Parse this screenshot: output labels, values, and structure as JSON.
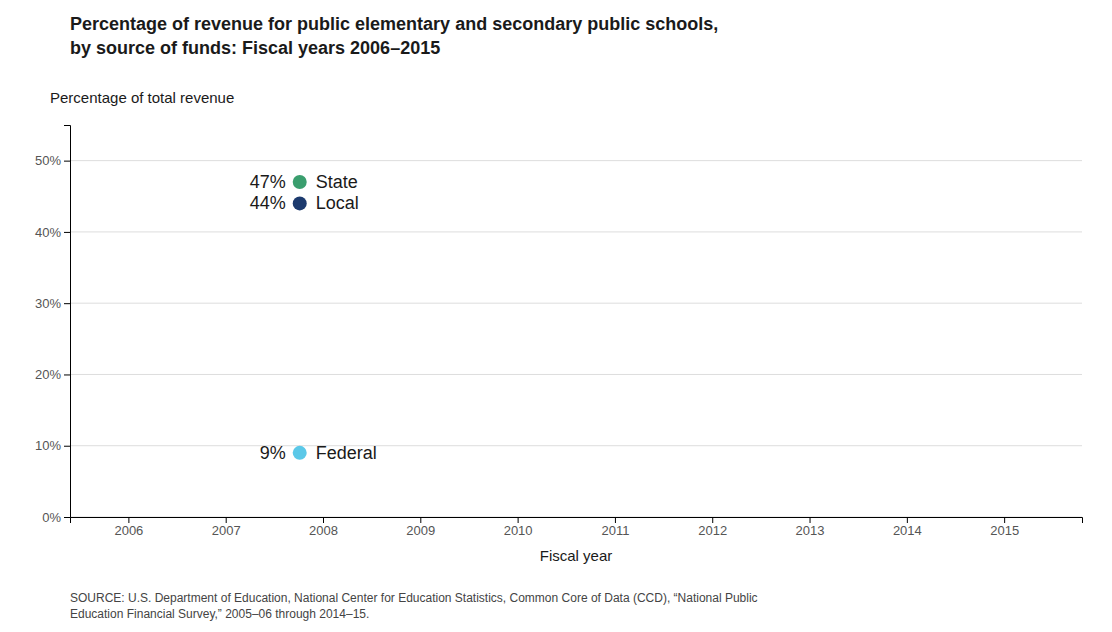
{
  "chart_data": {
    "type": "dot",
    "title": "Percentage of revenue for public elementary and secondary public schools,",
    "subtitle": "by source of funds: Fiscal years 2006–2015",
    "y_label": "Percentage of total revenue",
    "x_label": "Fiscal year",
    "xlim": [
      2005.4,
      2015.8
    ],
    "xticks": [
      2006,
      2007,
      2008,
      2009,
      2010,
      2011,
      2012,
      2013,
      2014,
      2015
    ],
    "ylim": [
      0,
      55
    ],
    "yticks": [
      {
        "value": 0,
        "label": "0%"
      },
      {
        "value": 10,
        "label": "10%"
      },
      {
        "value": 20,
        "label": "20%"
      },
      {
        "value": 30,
        "label": "30%"
      },
      {
        "value": 40,
        "label": "40%"
      },
      {
        "value": 50,
        "label": "50%"
      }
    ],
    "grid": true,
    "data_labels": true,
    "series": [
      {
        "name": "State",
        "color": "#3a9e6e",
        "values": [
          47
        ],
        "value_labels": [
          "47%"
        ]
      },
      {
        "name": "Local",
        "color": "#1c3a6e",
        "values": [
          44
        ],
        "value_labels": [
          "44%"
        ]
      },
      {
        "name": "Federal",
        "color": "#5bc8e8",
        "values": [
          9
        ],
        "value_labels": [
          "9%"
        ]
      }
    ],
    "source": "SOURCE: U.S. Department of Education, National Center for Education Statistics, Common Core of Data (CCD), “National Public\nEducation Financial Survey,” 2005–06 through 2014–15."
  }
}
